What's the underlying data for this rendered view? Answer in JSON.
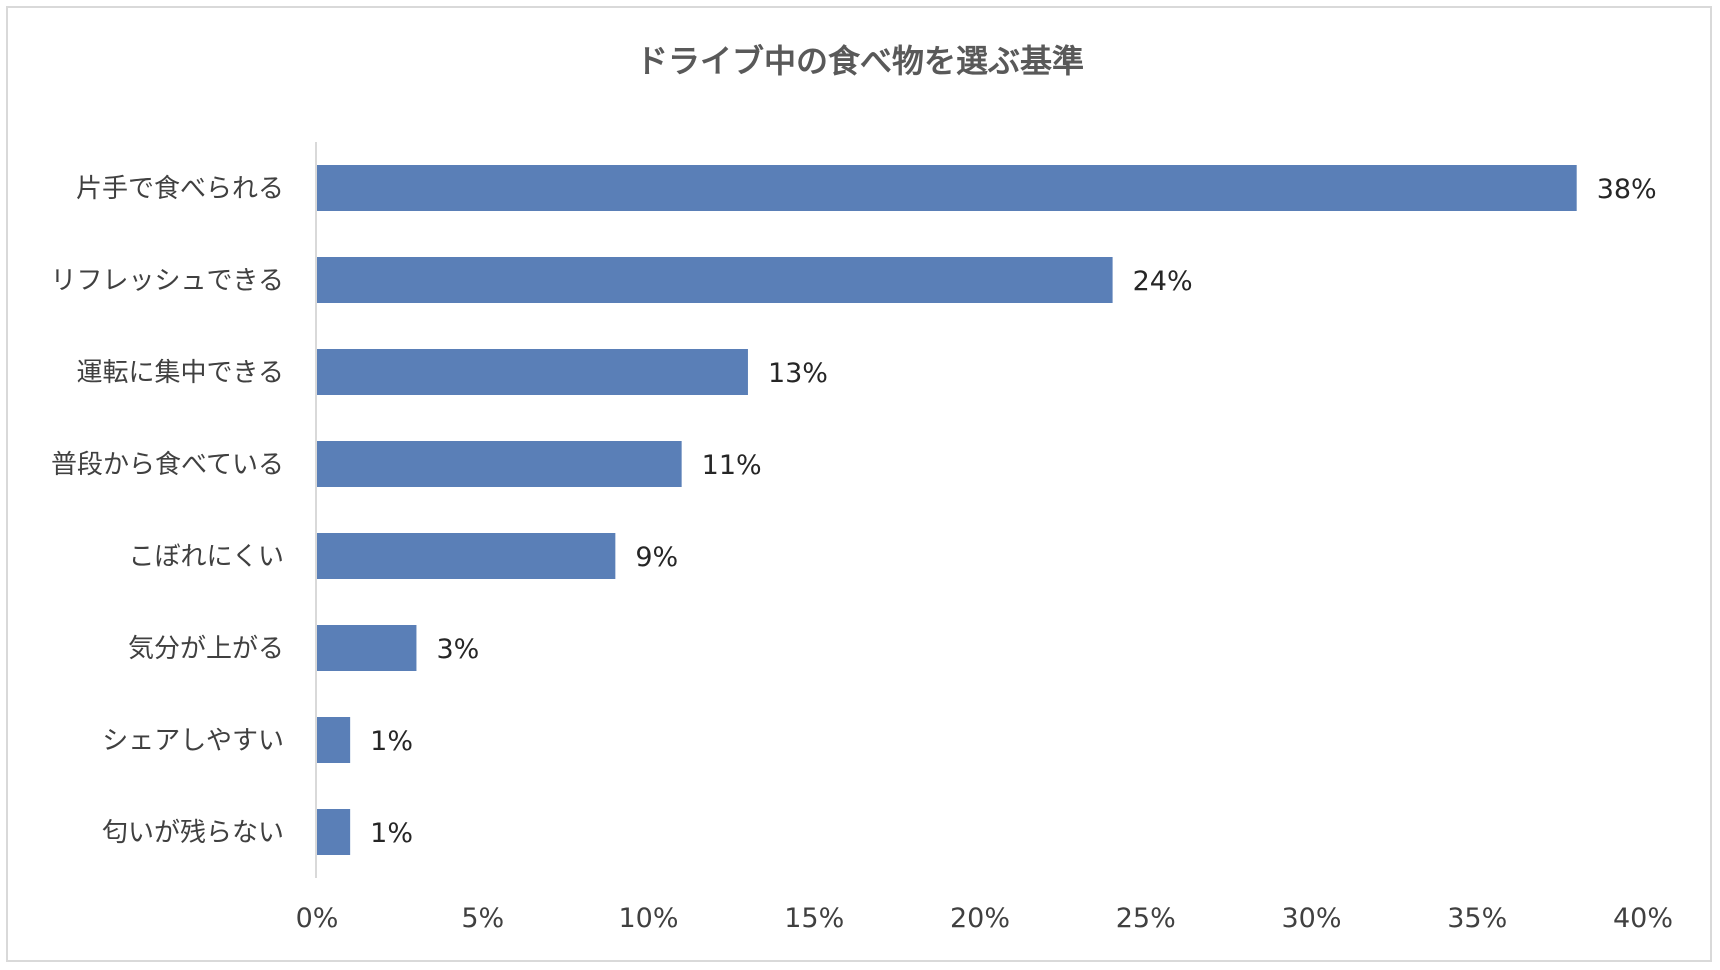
{
  "chart_data": {
    "type": "bar",
    "orientation": "horizontal",
    "title": "ドライブ中の食べ物を選ぶ基準",
    "xlabel": "",
    "ylabel": "",
    "categories": [
      "片手で食べられる",
      "リフレッシュできる",
      "運転に集中できる",
      "普段から食べている",
      "こぼれにくい",
      "気分が上がる",
      "シェアしやすい",
      "匂いが残らない"
    ],
    "values": [
      38,
      24,
      13,
      11,
      9,
      3,
      1,
      1
    ],
    "data_labels": [
      "38%",
      "24%",
      "13%",
      "11%",
      "9%",
      "3%",
      "1%",
      "1%"
    ],
    "xlim": [
      0,
      40
    ],
    "x_ticks": [
      "0%",
      "5%",
      "10%",
      "15%",
      "20%",
      "25%",
      "30%",
      "35%",
      "40%"
    ],
    "x_tick_values": [
      0,
      5,
      10,
      15,
      20,
      25,
      30,
      35,
      40
    ],
    "grid": false,
    "legend": "none",
    "bar_color": "#5a7fb7",
    "axis_color": "#d9d9d9"
  }
}
